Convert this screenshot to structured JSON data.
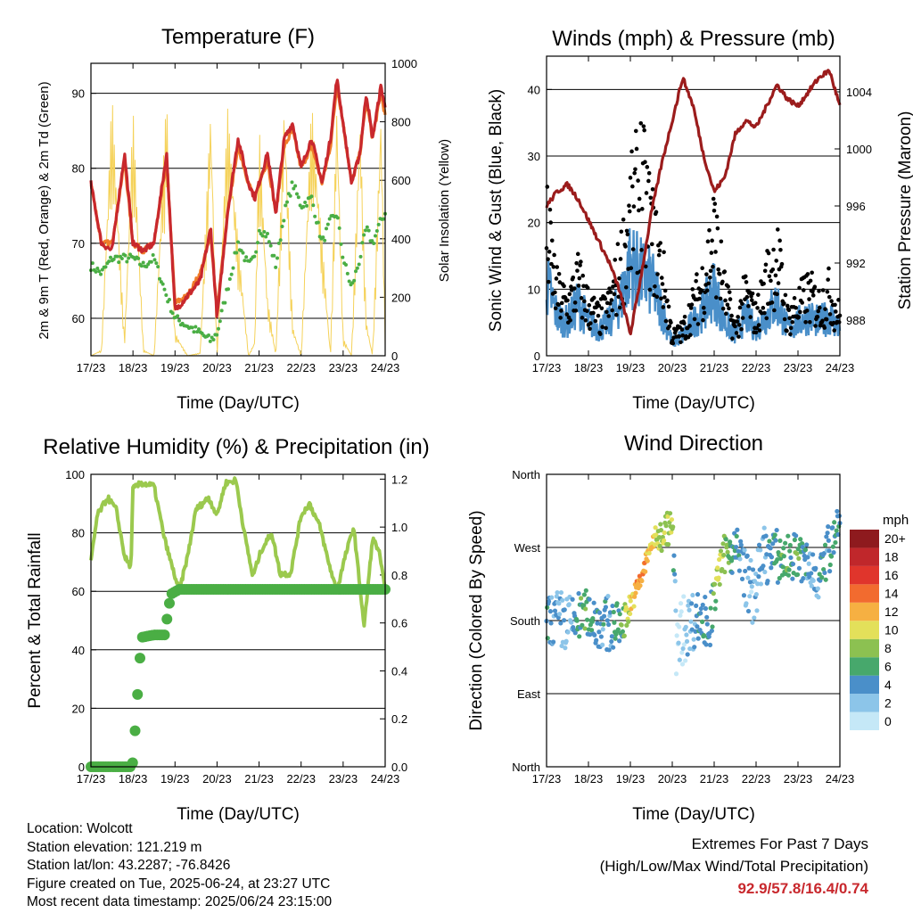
{
  "xticks": [
    "17/23",
    "18/23",
    "19/23",
    "20/23",
    "21/23",
    "22/23",
    "23/23",
    "24/23"
  ],
  "panels": {
    "temperature": {
      "title": "Temperature (F)",
      "xlabel": "Time (Day/UTC)",
      "ylabel_left": "2m & 9m T (Red, Orange) & 2m Td (Green)",
      "ylabel_right": "Solar Insolation (Yellow)",
      "yticks_left": [
        "60",
        "70",
        "80",
        "90"
      ],
      "yticks_right": [
        "0",
        "200",
        "400",
        "600",
        "800",
        "1000"
      ]
    },
    "winds": {
      "title": "Winds (mph) & Pressure (mb)",
      "xlabel": "Time (Day/UTC)",
      "ylabel_left": "Sonic Wind & Gust (Blue, Black)",
      "ylabel_right": "Station Pressure (Maroon)",
      "yticks_left": [
        "0",
        "10",
        "20",
        "30",
        "40"
      ],
      "yticks_right": [
        "988",
        "992",
        "996",
        "1000",
        "1004"
      ]
    },
    "humidity": {
      "title": "Relative Humidity (%) & Precipitation (in)",
      "xlabel": "Time (Day/UTC)",
      "ylabel_left": "Percent & Total Rainfall",
      "yticks_left": [
        "0",
        "20",
        "40",
        "60",
        "80",
        "100"
      ],
      "yticks_right": [
        "0.0",
        "0.2",
        "0.4",
        "0.6",
        "0.8",
        "1.0",
        "1.2"
      ]
    },
    "direction": {
      "title": "Wind Direction",
      "xlabel": "Time (Day/UTC)",
      "ylabel_left": "Direction (Colored By Speed)",
      "yticks_left": [
        "North",
        "East",
        "South",
        "West",
        "North"
      ],
      "colorbar_title": "mph",
      "colorbar_labels": [
        "0",
        "2",
        "4",
        "6",
        "8",
        "10",
        "12",
        "14",
        "16",
        "18",
        "20+"
      ],
      "colorbar_colors": [
        "#c5e8f7",
        "#8cc5e9",
        "#4a8fc9",
        "#47a86c",
        "#8cc151",
        "#e3e05a",
        "#f6b042",
        "#f26b2f",
        "#e0352c",
        "#c0272b",
        "#8e1a1e"
      ]
    }
  },
  "info": {
    "location": "Location: Wolcott",
    "elevation": "Station elevation: 121.219 m",
    "latlon": "Station lat/lon: 43.2287; -76.8426",
    "created": "Figure created on Tue, 2025-06-24, at 23:27 UTC",
    "recent": "Most recent data timestamp: 2025/06/24 23:15:00"
  },
  "extremes": {
    "title": "Extremes For Past 7 Days",
    "subtitle": "(High/Low/Max Wind/Total Precipitation)",
    "values": "92.9/57.8/16.4/0.74"
  },
  "chart_data": [
    {
      "type": "line",
      "title": "Temperature (F)",
      "xlabel": "Time (Day/UTC)",
      "ylabel": "2m & 9m T (Red, Orange) & 2m Td (Green)",
      "ylim": [
        55,
        94
      ],
      "y2label": "Solar Insolation (Yellow)",
      "y2lim": [
        0,
        1000
      ],
      "x": [
        0,
        0.25,
        0.5,
        0.8,
        1,
        1.25,
        1.5,
        1.8,
        2,
        2.3,
        2.6,
        2.85,
        3,
        3.25,
        3.5,
        3.75,
        3.9,
        4,
        4.2,
        4.4,
        4.6,
        4.8,
        5,
        5.25,
        5.5,
        5.7,
        5.85,
        6,
        6.2,
        6.4,
        6.55,
        6.7,
        6.9,
        7
      ],
      "series": [
        {
          "name": "2m T",
          "color": "#c8282d",
          "values": [
            78,
            70,
            69,
            82,
            70,
            69,
            70,
            82,
            61,
            63,
            65,
            72,
            60,
            74,
            84,
            78,
            76,
            78,
            82,
            74,
            84,
            86,
            80,
            84,
            78,
            84,
            92,
            86,
            78,
            82,
            90,
            84,
            91,
            88
          ]
        },
        {
          "name": "9m T",
          "color": "#f07c2a",
          "values": [
            78,
            70,
            70,
            81,
            70,
            69,
            70,
            81,
            62,
            63,
            66,
            71,
            61,
            74,
            83,
            78,
            76,
            78,
            81,
            74,
            83,
            85,
            80,
            83,
            78,
            83,
            91,
            86,
            78,
            82,
            89,
            84,
            90,
            87
          ]
        },
        {
          "name": "2m Td",
          "color": "#4aae44",
          "values": [
            67,
            66,
            68,
            68,
            68,
            67,
            68,
            63,
            60,
            59,
            58,
            57,
            58,
            64,
            70,
            67,
            68,
            72,
            71,
            67,
            74,
            78,
            75,
            76,
            70,
            73,
            74,
            68,
            64,
            68,
            72,
            70,
            73,
            74
          ]
        },
        {
          "name": "Solar Insolation",
          "color": "#f5d25a",
          "axis": "right",
          "values": [
            0,
            20,
            900,
            50,
            850,
            20,
            0,
            900,
            80,
            0,
            10,
            880,
            0,
            850,
            400,
            0,
            50,
            800,
            200,
            0,
            900,
            100,
            0,
            870,
            400,
            0,
            900,
            60,
            0,
            850,
            120,
            0,
            880,
            60
          ]
        }
      ]
    },
    {
      "type": "scatter",
      "title": "Winds (mph) & Pressure (mb)",
      "xlabel": "Time (Day/UTC)",
      "ylabel": "Sonic Wind & Gust (Blue, Black)",
      "ylim": [
        0,
        45
      ],
      "y2label": "Station Pressure (Maroon)",
      "y2lim": [
        985.5,
        1006.5
      ],
      "x": [
        0,
        0.25,
        0.5,
        0.75,
        1,
        1.25,
        1.5,
        1.75,
        2,
        2.25,
        2.5,
        2.75,
        3,
        3.25,
        3.5,
        3.75,
        4,
        4.25,
        4.5,
        4.75,
        5,
        5.25,
        5.5,
        5.75,
        6,
        6.25,
        6.5,
        6.75,
        7
      ],
      "series": [
        {
          "name": "Sonic Wind",
          "color": "#4a8fc9",
          "values": [
            11,
            6,
            5,
            8,
            5,
            4,
            5,
            8,
            14,
            12,
            11,
            7,
            2,
            3,
            5,
            7,
            10,
            5,
            3,
            6,
            4,
            6,
            8,
            4,
            5,
            6,
            5,
            6,
            4
          ]
        },
        {
          "name": "Gust",
          "color": "#000000",
          "values": [
            20,
            10,
            8,
            12,
            8,
            6,
            8,
            14,
            22,
            28,
            20,
            14,
            3,
            4,
            8,
            12,
            20,
            10,
            4,
            10,
            6,
            12,
            16,
            6,
            8,
            10,
            8,
            10,
            6
          ]
        },
        {
          "name": "Station Pressure",
          "color": "#9b1c1c",
          "axis": "right",
          "values": [
            996,
            997,
            997.5,
            996.5,
            995,
            993.5,
            992,
            990,
            987,
            991,
            995.5,
            999,
            1002,
            1005,
            1003,
            999.5,
            997,
            998,
            1001,
            1002,
            1001.5,
            1003,
            1004.5,
            1003.5,
            1003,
            1004,
            1005,
            1005.5,
            1003
          ]
        }
      ]
    },
    {
      "type": "line",
      "title": "Relative Humidity (%) & Precipitation (in)",
      "xlabel": "Time (Day/UTC)",
      "ylabel": "Percent & Total Rainfall",
      "ylim": [
        0,
        100
      ],
      "y2lim": [
        0,
        1.22
      ],
      "x": [
        0,
        0.15,
        0.4,
        0.6,
        0.8,
        0.95,
        1,
        1.2,
        1.5,
        1.75,
        1.9,
        2.1,
        2.3,
        2.5,
        2.8,
        3.0,
        3.2,
        3.45,
        3.65,
        3.85,
        4.05,
        4.3,
        4.5,
        4.75,
        5,
        5.2,
        5.45,
        5.65,
        5.85,
        6.05,
        6.25,
        6.5,
        6.7,
        6.85,
        7
      ],
      "series": [
        {
          "name": "Relative Humidity",
          "color": "#9bc94e",
          "values": [
            70,
            86,
            92,
            88,
            72,
            68,
            95,
            97,
            96,
            78,
            70,
            60,
            72,
            88,
            92,
            86,
            97,
            98,
            80,
            65,
            74,
            80,
            66,
            66,
            86,
            90,
            82,
            70,
            60,
            72,
            82,
            48,
            78,
            74,
            60
          ]
        },
        {
          "name": "Total Precipitation",
          "color": "#4aae44",
          "axis": "right",
          "values": [
            0,
            0,
            0,
            0,
            0,
            0,
            0.02,
            0.54,
            0.55,
            0.55,
            0.72,
            0.74,
            0.74,
            0.74,
            0.74,
            0.74,
            0.74,
            0.74,
            0.74,
            0.74,
            0.74,
            0.74,
            0.74,
            0.74,
            0.74,
            0.74,
            0.74,
            0.74,
            0.74,
            0.74,
            0.74,
            0.74,
            0.74,
            0.74,
            0.74
          ]
        }
      ]
    },
    {
      "type": "scatter",
      "title": "Wind Direction",
      "xlabel": "Time (Day/UTC)",
      "ylabel": "Direction (Colored By Speed)",
      "ylim": [
        0,
        360
      ],
      "y_categories": [
        "North",
        "East",
        "South",
        "West",
        "North"
      ],
      "x": [
        0,
        0.3,
        0.6,
        0.9,
        1.2,
        1.5,
        1.8,
        2.0,
        2.25,
        2.5,
        2.75,
        3.0,
        3.1,
        3.3,
        3.6,
        3.9,
        4.1,
        4.3,
        4.6,
        4.9,
        5.2,
        5.45,
        5.7,
        6.0,
        6.3,
        6.6,
        6.9,
        7
      ],
      "series": [
        {
          "name": "Direction",
          "values": [
            180,
            180,
            175,
            190,
            180,
            175,
            175,
            200,
            230,
            275,
            285,
            300,
            150,
            170,
            185,
            175,
            240,
            270,
            260,
            210,
            260,
            260,
            255,
            260,
            240,
            240,
            300,
            290
          ]
        },
        {
          "name": "Speed",
          "values": [
            6,
            4,
            4,
            8,
            5,
            5,
            7,
            12,
            14,
            12,
            10,
            9,
            1,
            2,
            5,
            6,
            10,
            8,
            5,
            3,
            4,
            6,
            7,
            7,
            4,
            5,
            6,
            5
          ]
        }
      ]
    }
  ]
}
